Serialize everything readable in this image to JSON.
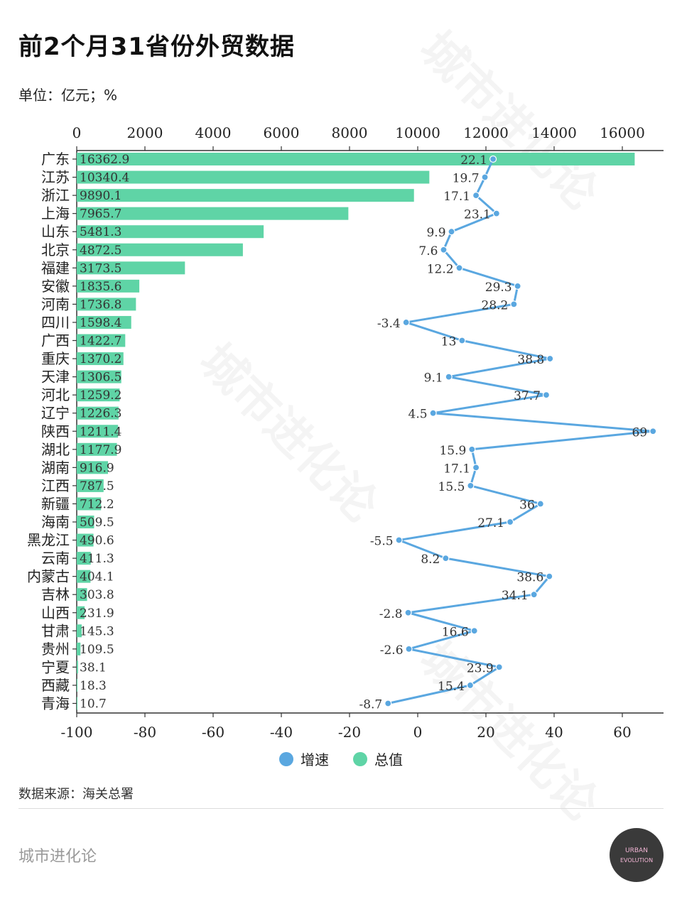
{
  "title": "前2个月31省份外贸数据",
  "unit": "单位：亿元；%",
  "source": "数据来源：海关总署",
  "brand": "城市进化论",
  "watermark": "城市进化论",
  "logo_text": [
    "URBAN",
    "EVOLUTION"
  ],
  "colors": {
    "bar": "#5fd4a6",
    "line": "#5aa7e0",
    "axis": "#333333"
  },
  "legend": [
    {
      "label": "增速",
      "color": "#5aa7e0",
      "icon": "circle-icon"
    },
    {
      "label": "总值",
      "color": "#5fd4a6",
      "icon": "circle-icon"
    }
  ],
  "chart_data": {
    "type": "bar",
    "orientation": "horizontal",
    "categories": [
      "广东",
      "江苏",
      "浙江",
      "上海",
      "山东",
      "北京",
      "福建",
      "安徽",
      "河南",
      "四川",
      "广西",
      "重庆",
      "天津",
      "河北",
      "辽宁",
      "陕西",
      "湖北",
      "湖南",
      "江西",
      "新疆",
      "海南",
      "黑龙江",
      "云南",
      "内蒙古",
      "吉林",
      "山西",
      "甘肃",
      "贵州",
      "宁夏",
      "西藏",
      "青海"
    ],
    "series": [
      {
        "name": "总值",
        "type": "bar",
        "axis": "top",
        "values": [
          16362.9,
          10340.4,
          9890.1,
          7965.7,
          5481.3,
          4872.5,
          3173.5,
          1835.6,
          1736.8,
          1598.4,
          1422.7,
          1370.2,
          1306.5,
          1259.2,
          1226.3,
          1211.4,
          1177.9,
          916.9,
          787.5,
          712.2,
          509.5,
          490.6,
          411.3,
          404.1,
          303.8,
          231.9,
          145.3,
          109.5,
          38.1,
          18.3,
          10.7
        ],
        "labels": [
          "16362.9",
          "10340.4",
          "9890.1",
          "7965.7",
          "5481.3",
          "4872.5",
          "3173.5",
          "1835.6",
          "1736.8",
          "1598.4",
          "1422.7",
          "1370.2",
          "1306.5",
          "1259.2",
          "1226.3",
          "1211.4",
          "1177.9",
          "916.9",
          "787.5",
          "712.2",
          "509.5",
          "490.6",
          "411.3",
          "404.1",
          "303.8",
          "231.9",
          "145.3",
          "109.5",
          "38.1",
          "18.3",
          "10.7"
        ]
      },
      {
        "name": "增速",
        "type": "line",
        "axis": "bottom",
        "values": [
          22.1,
          19.7,
          17.1,
          23.1,
          9.9,
          7.6,
          12.2,
          29.3,
          28.2,
          -3.4,
          13,
          38.8,
          9.1,
          37.7,
          4.5,
          69,
          15.9,
          17.1,
          15.5,
          36,
          27.1,
          -5.5,
          8.2,
          38.6,
          34.1,
          -2.8,
          16.6,
          -2.6,
          23.9,
          15.4,
          -8.7
        ],
        "labels": [
          "22.1",
          "19.7",
          "17.1",
          "23.1",
          "9.9",
          "7.6",
          "12.2",
          "29.3",
          "28.2",
          "-3.4",
          "13",
          "38.8",
          "9.1",
          "37.7",
          "4.5",
          "69",
          "15.9",
          "17.1",
          "15.5",
          "36",
          "27.1",
          "-5.5",
          "8.2",
          "38.6",
          "34.1",
          "-2.8",
          "16.6",
          "-2.6",
          "23.9",
          "15.4",
          "-8.7"
        ]
      }
    ],
    "x_top": {
      "min": 0,
      "max": 17000,
      "ticks": [
        0,
        2000,
        4000,
        6000,
        8000,
        10000,
        12000,
        14000,
        16000
      ],
      "tick_labels": [
        "0",
        "2000",
        "4000",
        "6000",
        "8000",
        "10000",
        "12000",
        "14000",
        "16000"
      ]
    },
    "x_bottom": {
      "min": -100,
      "max": 72,
      "ticks": [
        -100,
        -80,
        -60,
        -40,
        -20,
        0,
        20,
        40,
        60
      ],
      "tick_labels": [
        "-100",
        "-80",
        "-60",
        "-40",
        "-20",
        "0",
        "20",
        "40",
        "60"
      ]
    },
    "grid": false,
    "legend_position": "bottom-center"
  }
}
